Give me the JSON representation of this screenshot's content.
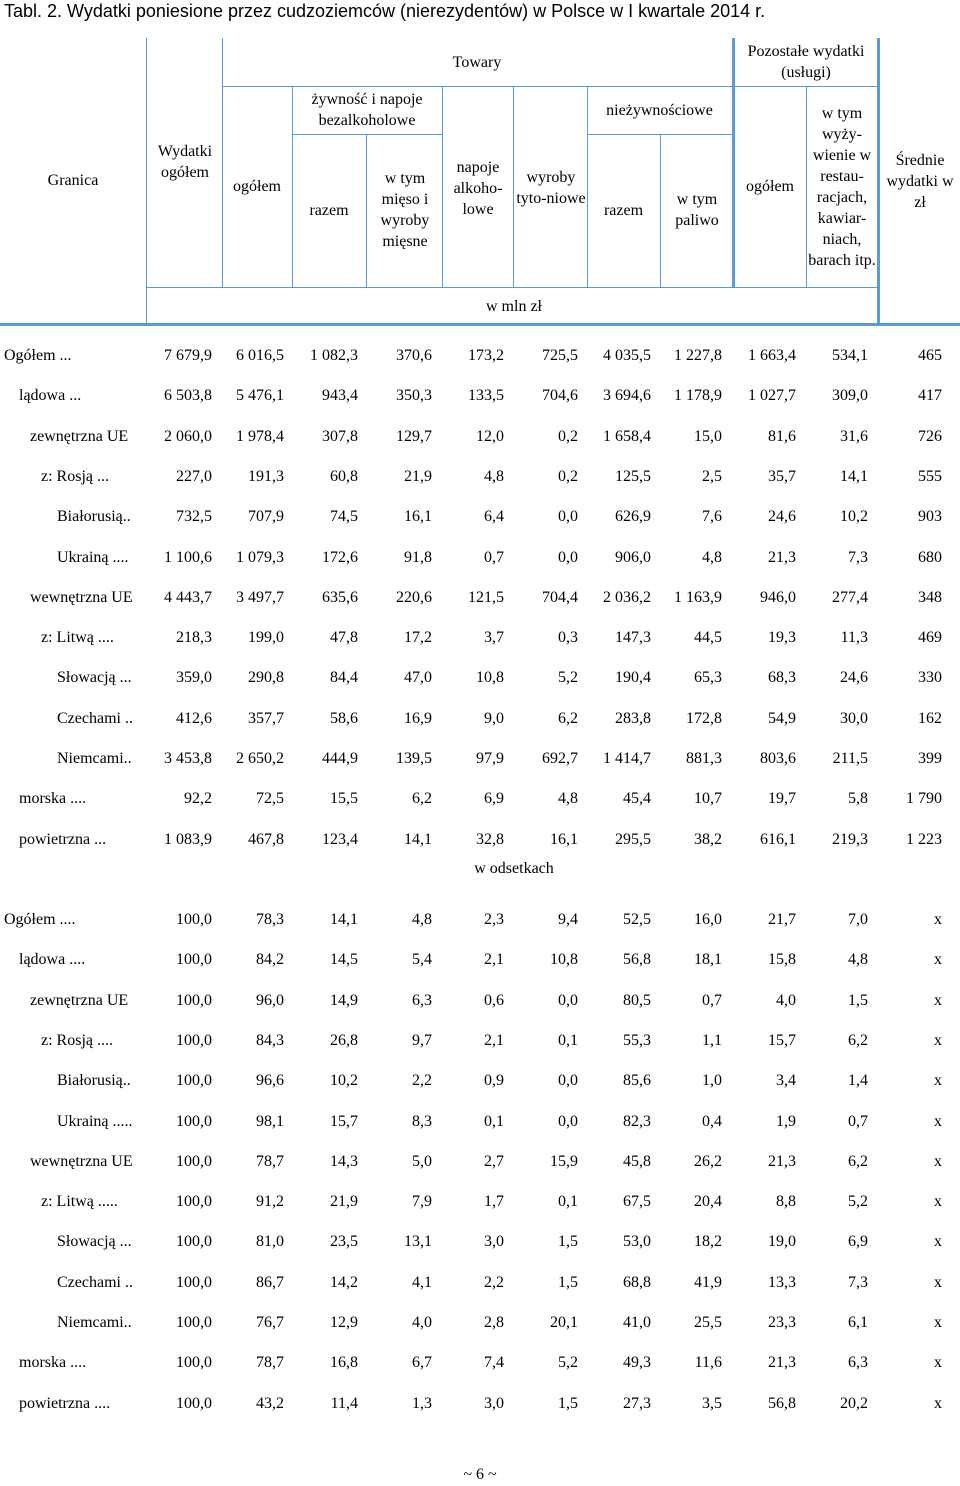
{
  "title": "Tabl. 2. Wydatki poniesione przez cudzoziemców (nierezydentów) w Polsce w I kwartale 2014 r.",
  "header": {
    "granica": "Granica",
    "wydatki_ogolem": "Wydatki ogółem",
    "towary": "Towary",
    "towary_ogolem": "ogółem",
    "zywnosc": "żywność i napoje bezalkoholowe",
    "zywnosc_razem": "razem",
    "zywnosc_mieso": "w tym mięso i wyroby mięsne",
    "napoje_alk": "napoje alkoho-lowe",
    "wyroby_tyt": "wyroby tyto-niowe",
    "niezywnosciowe": "nieżywnościowe",
    "niez_razem": "razem",
    "niez_paliwo": "w tym paliwo",
    "pozostale": "Pozostałe wydatki (usługi)",
    "pozostale_ogolem": "ogółem",
    "wyzywienie": "w tym wyży-wienie w restau-racjach, kawiar-niach, barach itp.",
    "srednie": "Średnie wydatki w zł",
    "jednostka_mln": "w mln zł"
  },
  "section_pct_label": "w odsetkach",
  "rows_mln": [
    {
      "label": "Ogółem ...",
      "ind": 0,
      "v": [
        "7 679,9",
        "6 016,5",
        "1 082,3",
        "370,6",
        "173,2",
        "725,5",
        "4 035,5",
        "1 227,8",
        "1 663,4",
        "534,1",
        "465"
      ]
    },
    {
      "label": "lądowa ...",
      "ind": 1,
      "v": [
        "6 503,8",
        "5 476,1",
        "943,4",
        "350,3",
        "133,5",
        "704,6",
        "3 694,6",
        "1 178,9",
        "1 027,7",
        "309,0",
        "417"
      ]
    },
    {
      "label": "zewnętrzna UE",
      "ind": 2,
      "v": [
        "2 060,0",
        "1 978,4",
        "307,8",
        "129,7",
        "12,0",
        "0,2",
        "1 658,4",
        "15,0",
        "81,6",
        "31,6",
        "726"
      ]
    },
    {
      "label": "z: Rosją ...",
      "ind": 3,
      "v": [
        "227,0",
        "191,3",
        "60,8",
        "21,9",
        "4,8",
        "0,2",
        "125,5",
        "2,5",
        "35,7",
        "14,1",
        "555"
      ]
    },
    {
      "label": "Białorusią..",
      "ind": 4,
      "v": [
        "732,5",
        "707,9",
        "74,5",
        "16,1",
        "6,4",
        "0,0",
        "626,9",
        "7,6",
        "24,6",
        "10,2",
        "903"
      ]
    },
    {
      "label": "Ukrainą ....",
      "ind": 4,
      "v": [
        "1 100,6",
        "1 079,3",
        "172,6",
        "91,8",
        "0,7",
        "0,0",
        "906,0",
        "4,8",
        "21,3",
        "7,3",
        "680"
      ]
    },
    {
      "label": "wewnętrzna UE",
      "ind": 2,
      "v": [
        "4 443,7",
        "3 497,7",
        "635,6",
        "220,6",
        "121,5",
        "704,4",
        "2 036,2",
        "1 163,9",
        "946,0",
        "277,4",
        "348"
      ]
    },
    {
      "label": "z: Litwą ....",
      "ind": 3,
      "v": [
        "218,3",
        "199,0",
        "47,8",
        "17,2",
        "3,7",
        "0,3",
        "147,3",
        "44,5",
        "19,3",
        "11,3",
        "469"
      ]
    },
    {
      "label": "Słowacją ...",
      "ind": 4,
      "v": [
        "359,0",
        "290,8",
        "84,4",
        "47,0",
        "10,8",
        "5,2",
        "190,4",
        "65,3",
        "68,3",
        "24,6",
        "330"
      ]
    },
    {
      "label": "Czechami ..",
      "ind": 4,
      "v": [
        "412,6",
        "357,7",
        "58,6",
        "16,9",
        "9,0",
        "6,2",
        "283,8",
        "172,8",
        "54,9",
        "30,0",
        "162"
      ]
    },
    {
      "label": "Niemcami..",
      "ind": 4,
      "v": [
        "3 453,8",
        "2 650,2",
        "444,9",
        "139,5",
        "97,9",
        "692,7",
        "1 414,7",
        "881,3",
        "803,6",
        "211,5",
        "399"
      ]
    },
    {
      "label": "morska ....",
      "ind": 1,
      "v": [
        "92,2",
        "72,5",
        "15,5",
        "6,2",
        "6,9",
        "4,8",
        "45,4",
        "10,7",
        "19,7",
        "5,8",
        "1 790"
      ]
    },
    {
      "label": "powietrzna ...",
      "ind": 1,
      "v": [
        "1 083,9",
        "467,8",
        "123,4",
        "14,1",
        "32,8",
        "16,1",
        "295,5",
        "38,2",
        "616,1",
        "219,3",
        "1 223"
      ]
    }
  ],
  "rows_pct": [
    {
      "label": "Ogółem ....",
      "ind": 0,
      "v": [
        "100,0",
        "78,3",
        "14,1",
        "4,8",
        "2,3",
        "9,4",
        "52,5",
        "16,0",
        "21,7",
        "7,0",
        "x"
      ]
    },
    {
      "label": "lądowa ....",
      "ind": 1,
      "v": [
        "100,0",
        "84,2",
        "14,5",
        "5,4",
        "2,1",
        "10,8",
        "56,8",
        "18,1",
        "15,8",
        "4,8",
        "x"
      ]
    },
    {
      "label": "zewnętrzna UE",
      "ind": 2,
      "v": [
        "100,0",
        "96,0",
        "14,9",
        "6,3",
        "0,6",
        "0,0",
        "80,5",
        "0,7",
        "4,0",
        "1,5",
        "x"
      ]
    },
    {
      "label": "z: Rosją ....",
      "ind": 3,
      "v": [
        "100,0",
        "84,3",
        "26,8",
        "9,7",
        "2,1",
        "0,1",
        "55,3",
        "1,1",
        "15,7",
        "6,2",
        "x"
      ]
    },
    {
      "label": "Białorusią..",
      "ind": 4,
      "v": [
        "100,0",
        "96,6",
        "10,2",
        "2,2",
        "0,9",
        "0,0",
        "85,6",
        "1,0",
        "3,4",
        "1,4",
        "x"
      ]
    },
    {
      "label": "Ukrainą .....",
      "ind": 4,
      "v": [
        "100,0",
        "98,1",
        "15,7",
        "8,3",
        "0,1",
        "0,0",
        "82,3",
        "0,4",
        "1,9",
        "0,7",
        "x"
      ]
    },
    {
      "label": "wewnętrzna UE",
      "ind": 2,
      "v": [
        "100,0",
        "78,7",
        "14,3",
        "5,0",
        "2,7",
        "15,9",
        "45,8",
        "26,2",
        "21,3",
        "6,2",
        "x"
      ]
    },
    {
      "label": "z: Litwą .....",
      "ind": 3,
      "v": [
        "100,0",
        "91,2",
        "21,9",
        "7,9",
        "1,7",
        "0,1",
        "67,5",
        "20,4",
        "8,8",
        "5,2",
        "x"
      ]
    },
    {
      "label": "Słowacją ...",
      "ind": 4,
      "v": [
        "100,0",
        "81,0",
        "23,5",
        "13,1",
        "3,0",
        "1,5",
        "53,0",
        "18,2",
        "19,0",
        "6,9",
        "x"
      ]
    },
    {
      "label": "Czechami ..",
      "ind": 4,
      "v": [
        "100,0",
        "86,7",
        "14,2",
        "4,1",
        "2,2",
        "1,5",
        "68,8",
        "41,9",
        "13,3",
        "7,3",
        "x"
      ]
    },
    {
      "label": "Niemcami..",
      "ind": 4,
      "v": [
        "100,0",
        "76,7",
        "12,9",
        "4,0",
        "2,8",
        "20,1",
        "41,0",
        "25,5",
        "23,3",
        "6,1",
        "x"
      ]
    },
    {
      "label": "morska ....",
      "ind": 1,
      "v": [
        "100,0",
        "78,7",
        "16,8",
        "6,7",
        "7,4",
        "5,2",
        "49,3",
        "11,6",
        "21,3",
        "6,3",
        "x"
      ]
    },
    {
      "label": "powietrzna ....",
      "ind": 1,
      "v": [
        "100,0",
        "43,2",
        "11,4",
        "1,3",
        "3,0",
        "1,5",
        "27,3",
        "3,5",
        "56,8",
        "20,2",
        "x"
      ]
    }
  ],
  "footer": "~ 6 ~"
}
